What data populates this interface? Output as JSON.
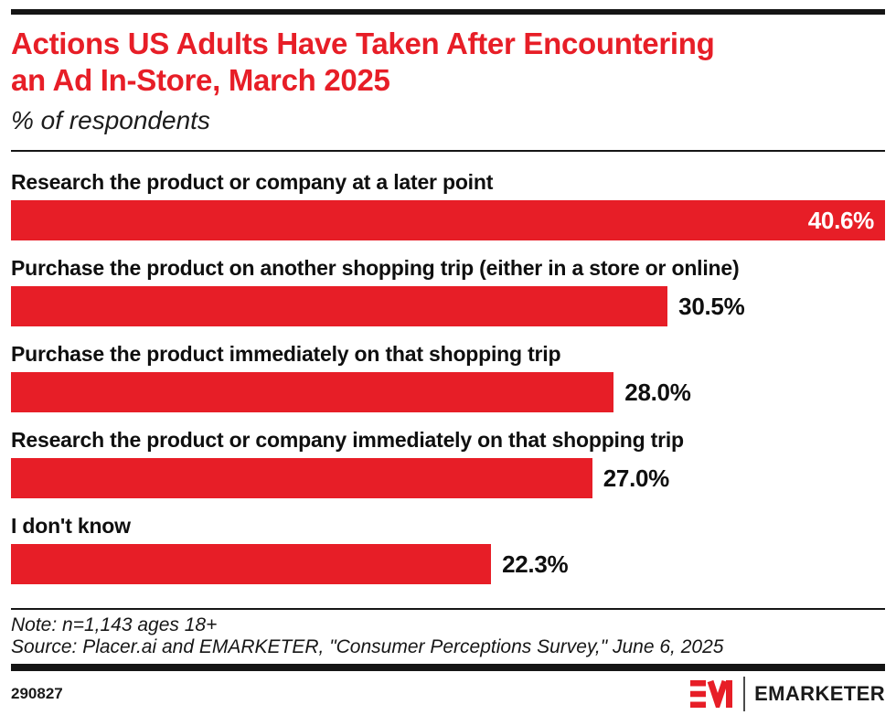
{
  "chart_data": {
    "type": "bar",
    "orientation": "horizontal",
    "title_line1": "Actions US Adults Have Taken After Encountering",
    "title_line2": "an Ad In-Store, March 2025",
    "subtitle": "% of respondents",
    "categories": [
      "Research the product or company at a later point",
      "Purchase the product on another shopping trip (either in a store or online)",
      "Purchase the product immediately on that shopping trip",
      "Research the product or company immediately on that shopping trip",
      "I don't know"
    ],
    "values": [
      40.6,
      30.5,
      28.0,
      27.0,
      22.3
    ],
    "value_labels": [
      "40.6%",
      "30.5%",
      "28.0%",
      "27.0%",
      "22.3%"
    ],
    "xlabel": "",
    "ylabel": "",
    "xlim": [
      0,
      40.6
    ],
    "grid": false,
    "legend": "none",
    "bar_color": "#E71E27"
  },
  "footer": {
    "note": "Note: n=1,143 ages 18+",
    "source": "Source: Placer.ai and EMARKETER, \"Consumer Perceptions Survey,\" June 6, 2025",
    "chart_id": "290827",
    "brand": "EMARKETER"
  },
  "colors": {
    "accent_red": "#E71E27",
    "bar_black": "#151515",
    "text_black": "#111111"
  }
}
